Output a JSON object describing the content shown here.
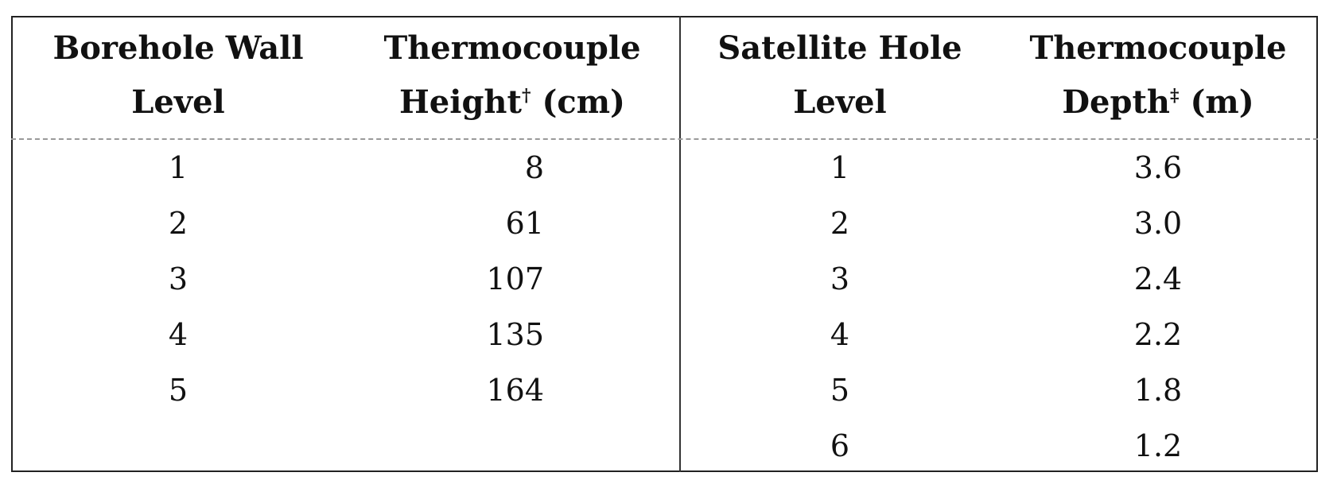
{
  "table": {
    "left": {
      "headers": [
        [
          "Borehole Wall",
          "Level"
        ],
        [
          "Thermocouple",
          "Height",
          "†",
          "(cm)"
        ]
      ],
      "rows": [
        [
          "1",
          "8"
        ],
        [
          "2",
          "61"
        ],
        [
          "3",
          "107"
        ],
        [
          "4",
          "135"
        ],
        [
          "5",
          "164"
        ]
      ]
    },
    "right": {
      "headers": [
        [
          "Satellite Hole",
          "Level"
        ],
        [
          "Thermocouple",
          "Depth",
          "‡",
          "(m)"
        ]
      ],
      "rows": [
        [
          "1",
          "3.6"
        ],
        [
          "2",
          "3.0"
        ],
        [
          "3",
          "2.4"
        ],
        [
          "4",
          "2.2"
        ],
        [
          "5",
          "1.8"
        ],
        [
          "6",
          "1.2"
        ]
      ]
    }
  }
}
